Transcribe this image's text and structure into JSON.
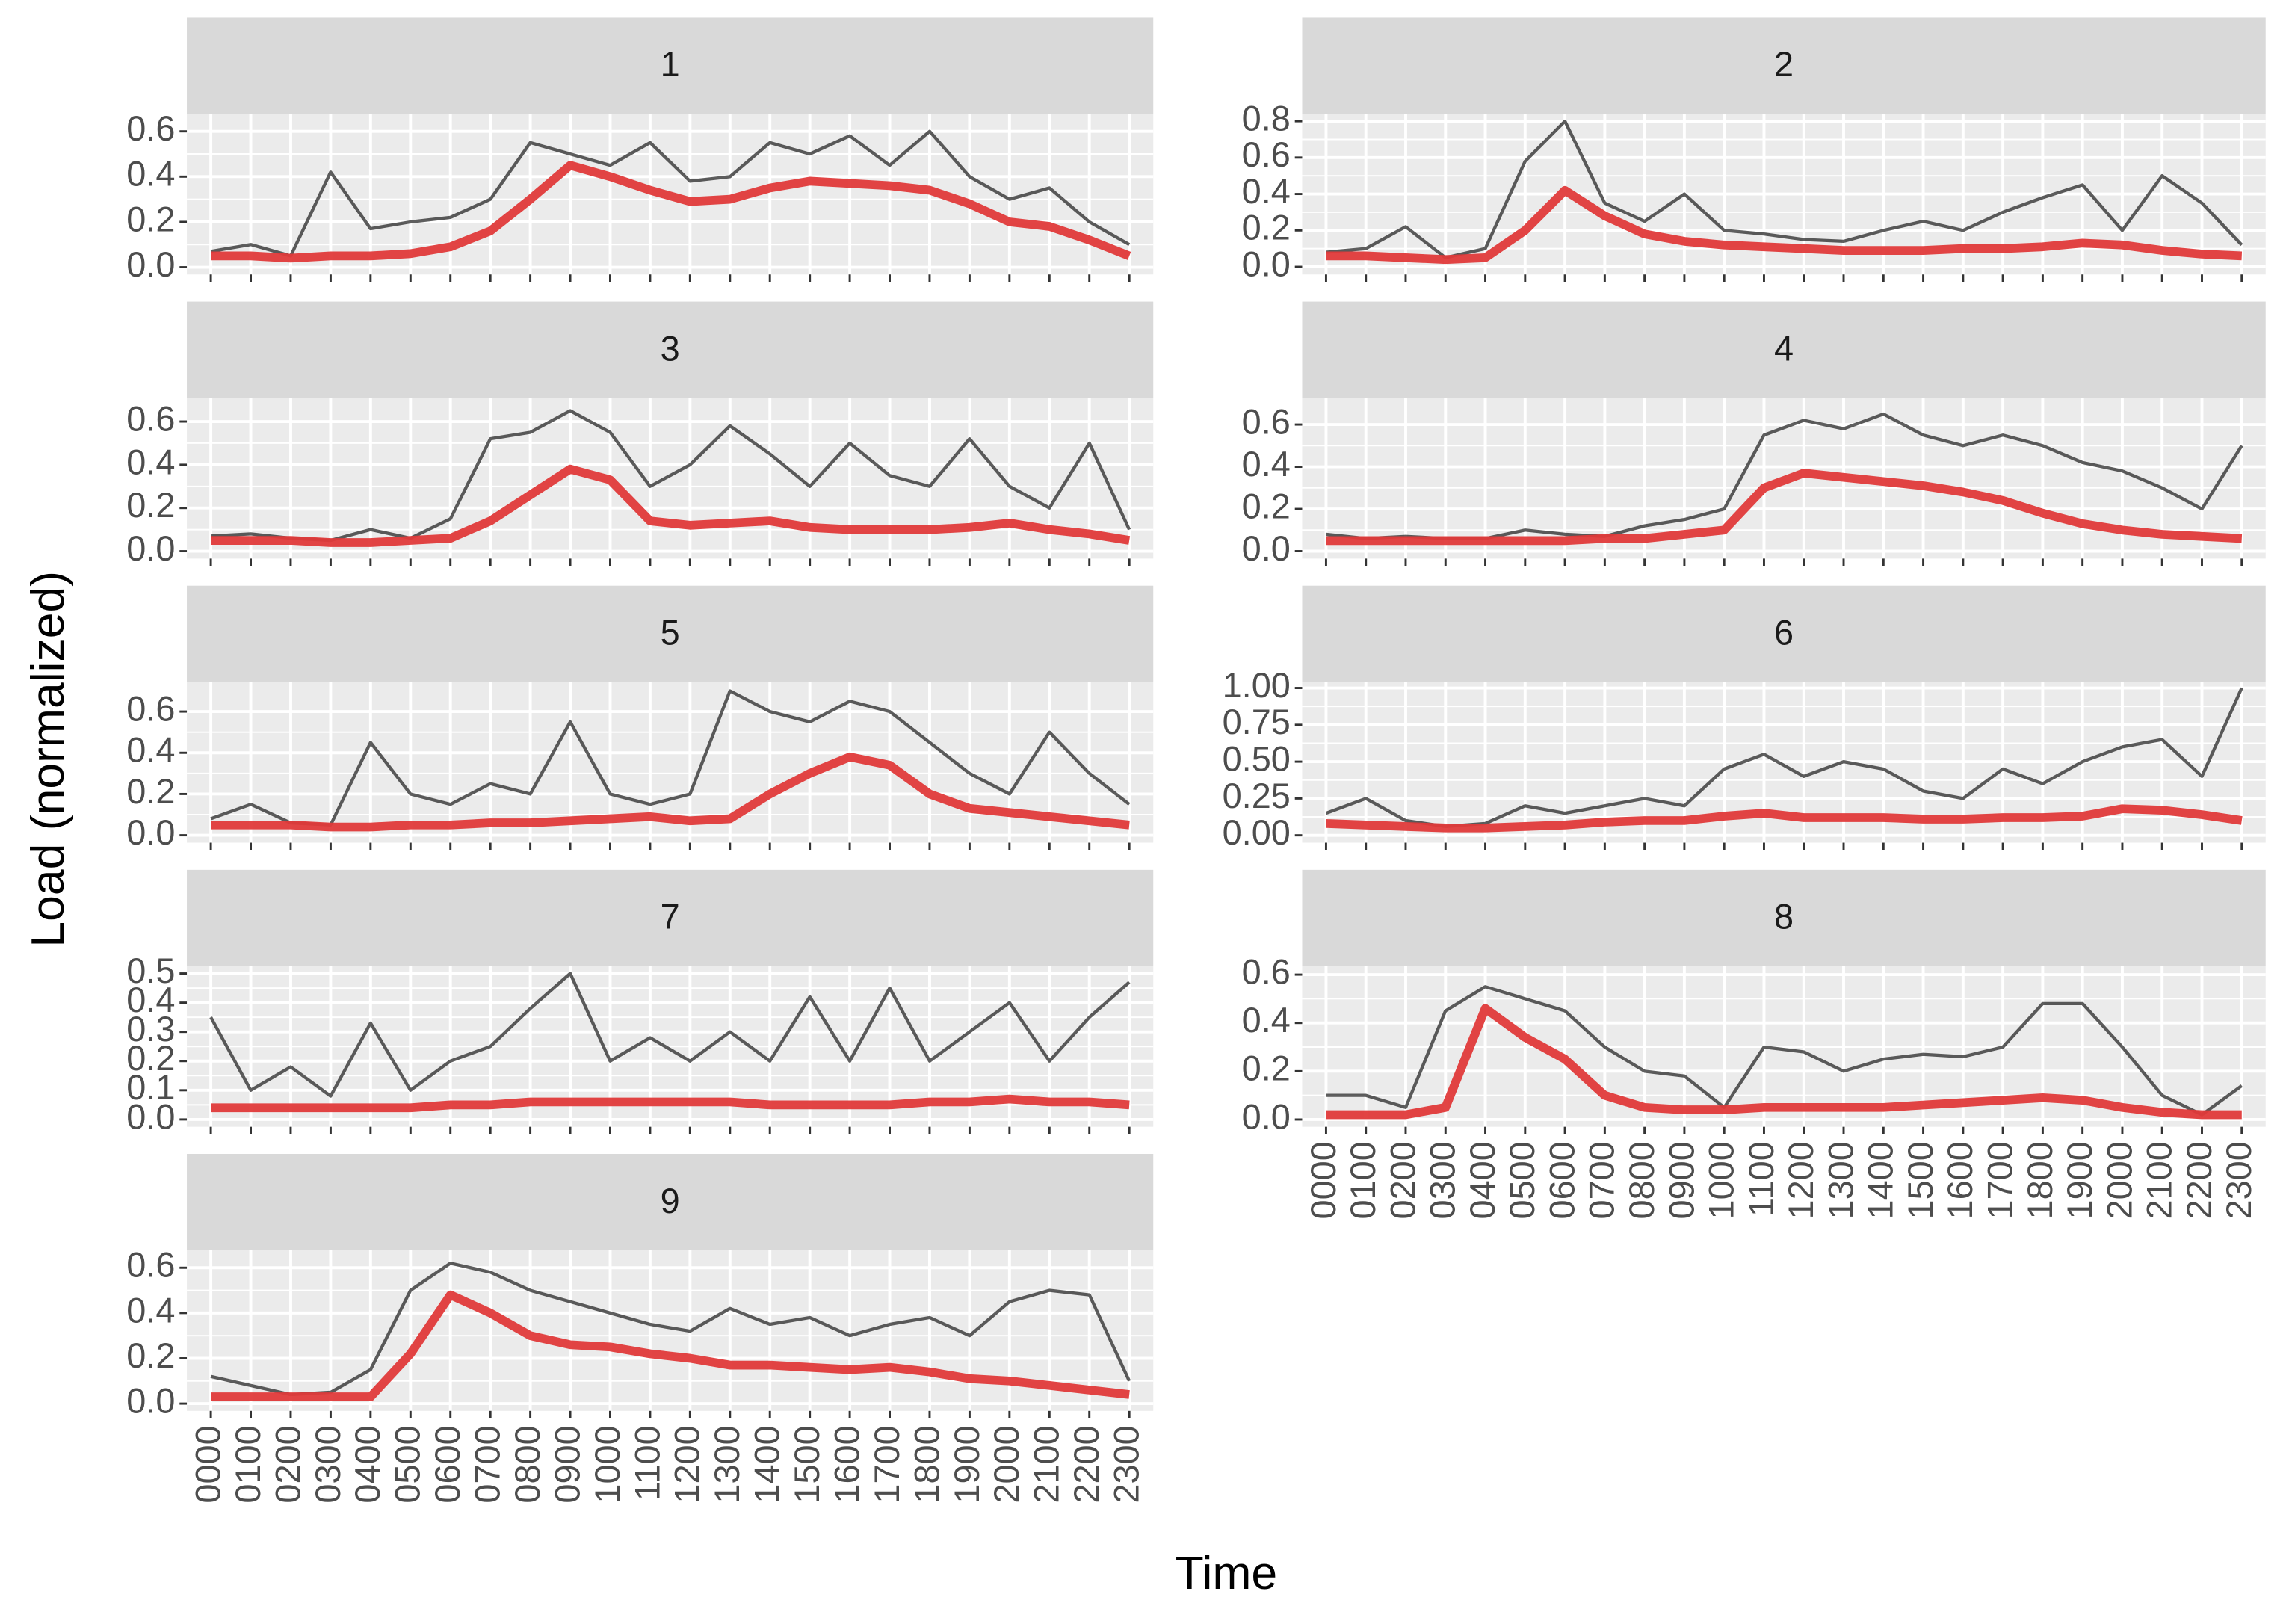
{
  "chart_data": {
    "type": "line",
    "xlabel": "Time",
    "ylabel": "Load (normalized)",
    "categories": [
      "0000",
      "0100",
      "0200",
      "0300",
      "0400",
      "0500",
      "0600",
      "0700",
      "0800",
      "0900",
      "1000",
      "1100",
      "1200",
      "1300",
      "1400",
      "1500",
      "1600",
      "1700",
      "1800",
      "1900",
      "2000",
      "2100",
      "2200",
      "2300"
    ],
    "grid": true,
    "panels": [
      {
        "title": "1",
        "ylim": [
          -0.032,
          0.677
        ],
        "yticks": [
          {
            "value": 0,
            "label": "0.0"
          },
          0.2,
          0.4,
          0.6
        ],
        "series": [
          {
            "color": "#1A1A1A",
            "values": [
              0.07,
              0.1,
              0.05,
              0.42,
              0.17,
              0.2,
              0.22,
              0.3,
              0.55,
              0.5,
              0.45,
              0.55,
              0.38,
              0.4,
              0.55,
              0.5,
              0.58,
              0.45,
              0.6,
              0.4,
              0.3,
              0.35,
              0.2,
              0.1
            ]
          },
          {
            "color": "#E03A3A",
            "values": [
              0.05,
              0.05,
              0.04,
              0.05,
              0.05,
              0.06,
              0.09,
              0.16,
              0.3,
              0.45,
              0.4,
              0.34,
              0.29,
              0.3,
              0.35,
              0.38,
              0.37,
              0.36,
              0.34,
              0.28,
              0.2,
              0.18,
              0.12,
              0.05
            ]
          }
        ]
      },
      {
        "title": "2",
        "ylim": [
          -0.042,
          0.84
        ],
        "yticks": [
          {
            "value": 0,
            "label": "0.0"
          },
          0.2,
          0.4,
          0.6,
          0.8
        ],
        "series": [
          {
            "color": "#1A1A1A",
            "values": [
              0.08,
              0.1,
              0.22,
              0.05,
              0.1,
              0.58,
              0.8,
              0.35,
              0.25,
              0.4,
              0.2,
              0.18,
              0.15,
              0.14,
              0.2,
              0.25,
              0.2,
              0.3,
              0.38,
              0.45,
              0.2,
              0.5,
              0.35,
              0.12
            ]
          },
          {
            "color": "#E03A3A",
            "values": [
              0.06,
              0.06,
              0.05,
              0.04,
              0.05,
              0.2,
              0.42,
              0.28,
              0.18,
              0.14,
              0.12,
              0.11,
              0.1,
              0.09,
              0.09,
              0.09,
              0.1,
              0.1,
              0.11,
              0.13,
              0.12,
              0.09,
              0.07,
              0.06
            ]
          }
        ]
      },
      {
        "title": "3",
        "ylim": [
          -0.034,
          0.709
        ],
        "yticks": [
          {
            "value": 0,
            "label": "0.0"
          },
          0.2,
          0.4,
          0.6
        ],
        "series": [
          {
            "color": "#1A1A1A",
            "values": [
              0.07,
              0.08,
              0.06,
              0.05,
              0.1,
              0.06,
              0.15,
              0.52,
              0.55,
              0.65,
              0.55,
              0.3,
              0.4,
              0.58,
              0.45,
              0.3,
              0.5,
              0.35,
              0.3,
              0.52,
              0.3,
              0.2,
              0.5,
              0.1
            ]
          },
          {
            "color": "#E03A3A",
            "values": [
              0.05,
              0.05,
              0.05,
              0.04,
              0.04,
              0.05,
              0.06,
              0.14,
              0.26,
              0.38,
              0.33,
              0.14,
              0.12,
              0.13,
              0.14,
              0.11,
              0.1,
              0.1,
              0.1,
              0.11,
              0.13,
              0.1,
              0.08,
              0.05
            ]
          }
        ]
      },
      {
        "title": "4",
        "ylim": [
          -0.035,
          0.726
        ],
        "yticks": [
          {
            "value": 0,
            "label": "0.0"
          },
          0.2,
          0.4,
          0.6
        ],
        "series": [
          {
            "color": "#1A1A1A",
            "values": [
              0.08,
              0.06,
              0.07,
              0.06,
              0.06,
              0.1,
              0.08,
              0.07,
              0.12,
              0.15,
              0.2,
              0.55,
              0.62,
              0.58,
              0.65,
              0.55,
              0.5,
              0.55,
              0.5,
              0.42,
              0.38,
              0.3,
              0.2,
              0.5
            ]
          },
          {
            "color": "#E03A3A",
            "values": [
              0.05,
              0.05,
              0.05,
              0.05,
              0.05,
              0.05,
              0.05,
              0.06,
              0.06,
              0.08,
              0.1,
              0.3,
              0.37,
              0.35,
              0.33,
              0.31,
              0.28,
              0.24,
              0.18,
              0.13,
              0.1,
              0.08,
              0.07,
              0.06
            ]
          }
        ]
      },
      {
        "title": "5",
        "ylim": [
          -0.036,
          0.743
        ],
        "yticks": [
          {
            "value": 0,
            "label": "0.0"
          },
          0.2,
          0.4,
          0.6
        ],
        "series": [
          {
            "color": "#1A1A1A",
            "values": [
              0.08,
              0.15,
              0.06,
              0.05,
              0.45,
              0.2,
              0.15,
              0.25,
              0.2,
              0.55,
              0.2,
              0.15,
              0.2,
              0.7,
              0.6,
              0.55,
              0.65,
              0.6,
              0.45,
              0.3,
              0.2,
              0.5,
              0.3,
              0.15
            ]
          },
          {
            "color": "#E03A3A",
            "values": [
              0.05,
              0.05,
              0.05,
              0.04,
              0.04,
              0.05,
              0.05,
              0.06,
              0.06,
              0.07,
              0.08,
              0.09,
              0.07,
              0.08,
              0.2,
              0.3,
              0.38,
              0.34,
              0.2,
              0.13,
              0.11,
              0.09,
              0.07,
              0.05
            ]
          }
        ]
      },
      {
        "title": "6",
        "ylim": [
          -0.05,
          1.04
        ],
        "yticks": [
          {
            "value": 0,
            "label": "0.00"
          },
          0.25,
          {
            "value": 0.5,
            "label": "0.50"
          },
          0.75,
          {
            "value": 1,
            "label": "1.00"
          }
        ],
        "series": [
          {
            "color": "#1A1A1A",
            "values": [
              0.15,
              0.25,
              0.1,
              0.06,
              0.08,
              0.2,
              0.15,
              0.2,
              0.25,
              0.2,
              0.45,
              0.55,
              0.4,
              0.5,
              0.45,
              0.3,
              0.25,
              0.45,
              0.35,
              0.5,
              0.6,
              0.65,
              0.4,
              1.0
            ]
          },
          {
            "color": "#E03A3A",
            "values": [
              0.08,
              0.07,
              0.06,
              0.05,
              0.05,
              0.06,
              0.07,
              0.09,
              0.1,
              0.1,
              0.13,
              0.15,
              0.12,
              0.12,
              0.12,
              0.11,
              0.11,
              0.12,
              0.12,
              0.13,
              0.18,
              0.17,
              0.14,
              0.1
            ]
          }
        ]
      },
      {
        "title": "7",
        "ylim": [
          -0.025,
          0.525
        ],
        "yticks": [
          {
            "value": 0,
            "label": "0.0"
          },
          0.1,
          0.2,
          0.3,
          0.4,
          0.5
        ],
        "series": [
          {
            "color": "#1A1A1A",
            "values": [
              0.35,
              0.1,
              0.18,
              0.08,
              0.33,
              0.1,
              0.2,
              0.25,
              0.38,
              0.5,
              0.2,
              0.28,
              0.2,
              0.3,
              0.2,
              0.42,
              0.2,
              0.45,
              0.2,
              0.3,
              0.4,
              0.2,
              0.35,
              0.47
            ]
          },
          {
            "color": "#E03A3A",
            "values": [
              0.04,
              0.04,
              0.04,
              0.04,
              0.04,
              0.04,
              0.05,
              0.05,
              0.06,
              0.06,
              0.06,
              0.06,
              0.06,
              0.06,
              0.05,
              0.05,
              0.05,
              0.05,
              0.06,
              0.06,
              0.07,
              0.06,
              0.06,
              0.05
            ]
          }
        ]
      },
      {
        "title": "8",
        "ylim": [
          -0.03,
          0.635
        ],
        "yticks": [
          {
            "value": 0,
            "label": "0.0"
          },
          0.2,
          0.4,
          0.6
        ],
        "series": [
          {
            "color": "#1A1A1A",
            "values": [
              0.1,
              0.1,
              0.05,
              0.45,
              0.55,
              0.5,
              0.45,
              0.3,
              0.2,
              0.18,
              0.05,
              0.3,
              0.28,
              0.2,
              0.25,
              0.27,
              0.26,
              0.3,
              0.48,
              0.48,
              0.3,
              0.1,
              0.02,
              0.14
            ]
          },
          {
            "color": "#E03A3A",
            "values": [
              0.02,
              0.02,
              0.02,
              0.05,
              0.46,
              0.34,
              0.25,
              0.1,
              0.05,
              0.04,
              0.04,
              0.05,
              0.05,
              0.05,
              0.05,
              0.06,
              0.07,
              0.08,
              0.09,
              0.08,
              0.05,
              0.03,
              0.02,
              0.02
            ]
          }
        ]
      },
      {
        "title": "9",
        "ylim": [
          -0.032,
          0.677
        ],
        "yticks": [
          {
            "value": 0,
            "label": "0.0"
          },
          0.2,
          0.4,
          0.6
        ],
        "series": [
          {
            "color": "#1A1A1A",
            "values": [
              0.12,
              0.08,
              0.04,
              0.05,
              0.15,
              0.5,
              0.62,
              0.58,
              0.5,
              0.45,
              0.4,
              0.35,
              0.32,
              0.42,
              0.35,
              0.38,
              0.3,
              0.35,
              0.38,
              0.3,
              0.45,
              0.5,
              0.48,
              0.1
            ]
          },
          {
            "color": "#E03A3A",
            "values": [
              0.03,
              0.03,
              0.03,
              0.03,
              0.03,
              0.22,
              0.48,
              0.4,
              0.3,
              0.26,
              0.25,
              0.22,
              0.2,
              0.17,
              0.17,
              0.16,
              0.15,
              0.16,
              0.14,
              0.11,
              0.1,
              0.08,
              0.06,
              0.04
            ]
          }
        ]
      }
    ]
  }
}
